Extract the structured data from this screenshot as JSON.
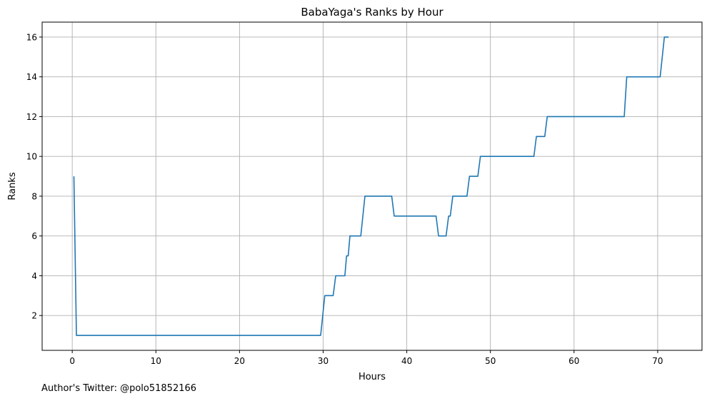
{
  "chart_data": {
    "type": "line",
    "title": "BabaYaga's Ranks by Hour",
    "xlabel": "Hours",
    "ylabel": "Ranks",
    "xlim": [
      -3.6,
      75.3
    ],
    "ylim": [
      0.25,
      16.75
    ],
    "xticks": [
      0,
      10,
      20,
      30,
      40,
      50,
      60,
      70
    ],
    "yticks": [
      2,
      4,
      6,
      8,
      10,
      12,
      14,
      16
    ],
    "grid": true,
    "line_color": "#1f77b4",
    "series": [
      {
        "x": [
          0.2,
          0.5,
          29.7,
          30.2,
          31.2,
          31.5,
          32.6,
          32.8,
          33.0,
          33.2,
          34.5,
          35.0,
          38.2,
          38.5,
          43.5,
          43.8,
          44.7,
          45.0,
          45.2,
          45.5,
          47.2,
          47.5,
          48.5,
          48.8,
          55.2,
          55.5,
          56.5,
          56.8,
          66.0,
          66.3,
          70.3,
          70.8,
          71.3
        ],
        "y": [
          9,
          1,
          1,
          3,
          3,
          4,
          4,
          5,
          5,
          6,
          6,
          8,
          8,
          7,
          7,
          6,
          6,
          7,
          7,
          8,
          8,
          9,
          9,
          10,
          10,
          11,
          11,
          12,
          12,
          14,
          14,
          16,
          16
        ]
      }
    ]
  },
  "footer": {
    "credit": "Author's Twitter: @polo51852166"
  }
}
